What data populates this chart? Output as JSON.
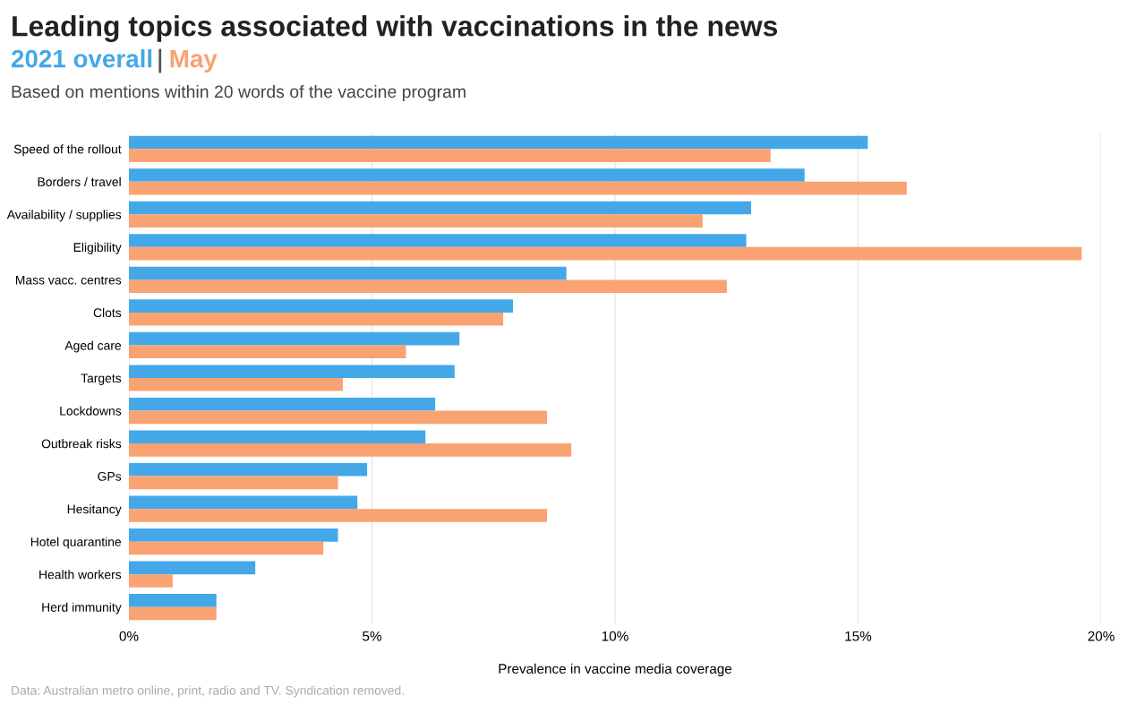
{
  "chart_data": {
    "type": "bar",
    "orientation": "horizontal",
    "title": "Leading topics associated with vaccinations in the news",
    "subtitle": "Based on mentions within 20 words of the vaccine program",
    "xlabel": "Prevalence in vaccine media coverage",
    "annotations": [
      "Data: Australian metro online, print, radio and TV. Syndication removed."
    ],
    "categories": [
      "Speed of the rollout",
      "Borders / travel",
      "Availability / supplies",
      "Eligibility",
      "Mass vacc. centres",
      "Clots",
      "Aged care",
      "Targets",
      "Lockdowns",
      "Outbreak risks",
      "GPs",
      "Hesitancy",
      "Hotel quarantine",
      "Health workers",
      "Herd immunity"
    ],
    "series": [
      {
        "name": "2021 overall",
        "color": "#44a8e8",
        "values": [
          15.2,
          13.9,
          12.8,
          12.7,
          9.0,
          7.9,
          6.8,
          6.7,
          6.3,
          6.1,
          4.9,
          4.7,
          4.3,
          2.6,
          1.8
        ]
      },
      {
        "name": "May",
        "color": "#f9a272",
        "values": [
          13.2,
          16.0,
          11.8,
          19.6,
          12.3,
          7.7,
          5.7,
          4.4,
          8.6,
          9.1,
          4.3,
          8.6,
          4.0,
          0.9,
          1.8
        ]
      }
    ],
    "xlim": [
      0,
      20
    ],
    "xticks": [
      {
        "value": 0,
        "label": "0%"
      },
      {
        "value": 5,
        "label": "5%"
      },
      {
        "value": 10,
        "label": "10%"
      },
      {
        "value": 15,
        "label": "15%"
      },
      {
        "value": 20,
        "label": "20%"
      }
    ],
    "grid": "x",
    "legend": "top left"
  }
}
